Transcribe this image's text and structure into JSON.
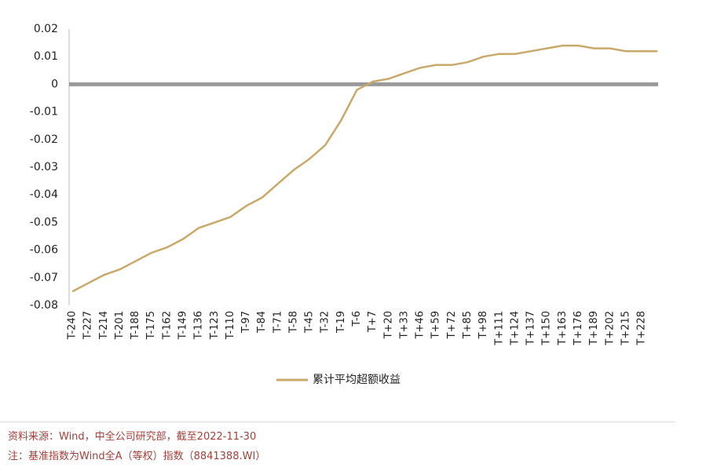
{
  "chart_data": {
    "type": "line",
    "categories": [
      "T-240",
      "T-227",
      "T-214",
      "T-201",
      "T-188",
      "T-175",
      "T-162",
      "T-149",
      "T-136",
      "T-123",
      "T-110",
      "T-97",
      "T-84",
      "T-71",
      "T-58",
      "T-45",
      "T-32",
      "T-19",
      "T-6",
      "T+7",
      "T+20",
      "T+33",
      "T+46",
      "T+59",
      "T+72",
      "T+85",
      "T+98",
      "T+111",
      "T+124",
      "T+137",
      "T+150",
      "T+163",
      "T+176",
      "T+189",
      "T+202",
      "T+215",
      "T+228",
      null
    ],
    "series": [
      {
        "name": "累计平均超额收益",
        "color": "#c9a96a",
        "values": [
          -0.075,
          -0.072,
          -0.069,
          -0.067,
          -0.064,
          -0.061,
          -0.059,
          -0.056,
          -0.052,
          -0.05,
          -0.048,
          -0.044,
          -0.041,
          -0.036,
          -0.031,
          -0.027,
          -0.022,
          -0.013,
          -0.002,
          0.001,
          0.002,
          0.004,
          0.006,
          0.007,
          0.007,
          0.008,
          0.01,
          0.011,
          0.011,
          0.012,
          0.013,
          0.014,
          0.014,
          0.013,
          0.013,
          0.012,
          0.012,
          0.012
        ]
      }
    ],
    "ylim": [
      -0.08,
      0.02
    ],
    "yticks": [
      0.02,
      0.01,
      0,
      -0.01,
      -0.02,
      -0.03,
      -0.04,
      -0.05,
      -0.06,
      -0.07,
      -0.08
    ],
    "zero_line_color": "#999999"
  },
  "footer": {
    "source": "资料来源：Wind，中全公司研究部，截至2022-11-30",
    "note": "注：基准指数为Wind全A（等权）指数（8841388.WI）"
  }
}
